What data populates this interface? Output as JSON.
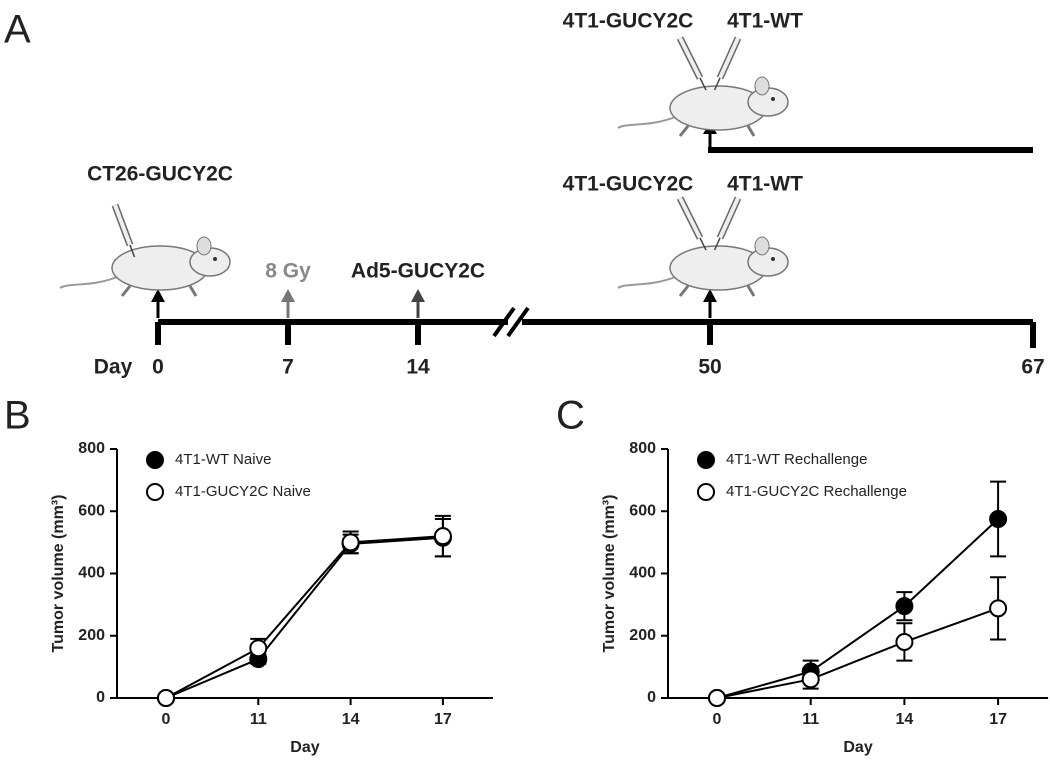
{
  "panels": [
    "A",
    "B",
    "C"
  ],
  "timeline": {
    "axis_label": "Day",
    "days": [
      0,
      7,
      14,
      50,
      67
    ],
    "events": {
      "prime": "CT26-GUCY2C",
      "radiation": "8 Gy",
      "vaccine": "Ad5-GUCY2C",
      "rechallenge_top": [
        "4T1-GUCY2C",
        "4T1-WT"
      ],
      "rechallenge_bottom": [
        "4T1-GUCY2C",
        "4T1-WT"
      ]
    }
  },
  "chart_data": [
    {
      "type": "line",
      "xlabel": "Day",
      "ylabel": "Tumor volume (mm³)",
      "categories": [
        "0",
        "11",
        "14",
        "17"
      ],
      "ylim": [
        0,
        800
      ],
      "yticks": [
        0,
        200,
        400,
        600,
        800
      ],
      "legend": "upper left",
      "series": [
        {
          "name": "4T1-WT Naive",
          "color": "#000000",
          "values": [
            0,
            125,
            495,
            515
          ],
          "errors": [
            0,
            15,
            30,
            60
          ]
        },
        {
          "name": "4T1-GUCY2C Naive",
          "color": "#ffffff",
          "values": [
            0,
            160,
            500,
            520
          ],
          "errors": [
            0,
            30,
            35,
            65
          ]
        }
      ]
    },
    {
      "type": "line",
      "xlabel": "Day",
      "ylabel": "Tumor volume (mm³)",
      "categories": [
        "0",
        "11",
        "14",
        "17"
      ],
      "ylim": [
        0,
        800
      ],
      "yticks": [
        0,
        200,
        400,
        600,
        800
      ],
      "legend": "upper left",
      "series": [
        {
          "name": "4T1-WT Rechallenge",
          "color": "#000000",
          "values": [
            0,
            85,
            295,
            575
          ],
          "errors": [
            0,
            35,
            45,
            120
          ]
        },
        {
          "name": "4T1-GUCY2C Rechallenge",
          "color": "#ffffff",
          "values": [
            0,
            60,
            180,
            288
          ],
          "errors": [
            0,
            30,
            60,
            100
          ]
        }
      ]
    }
  ]
}
